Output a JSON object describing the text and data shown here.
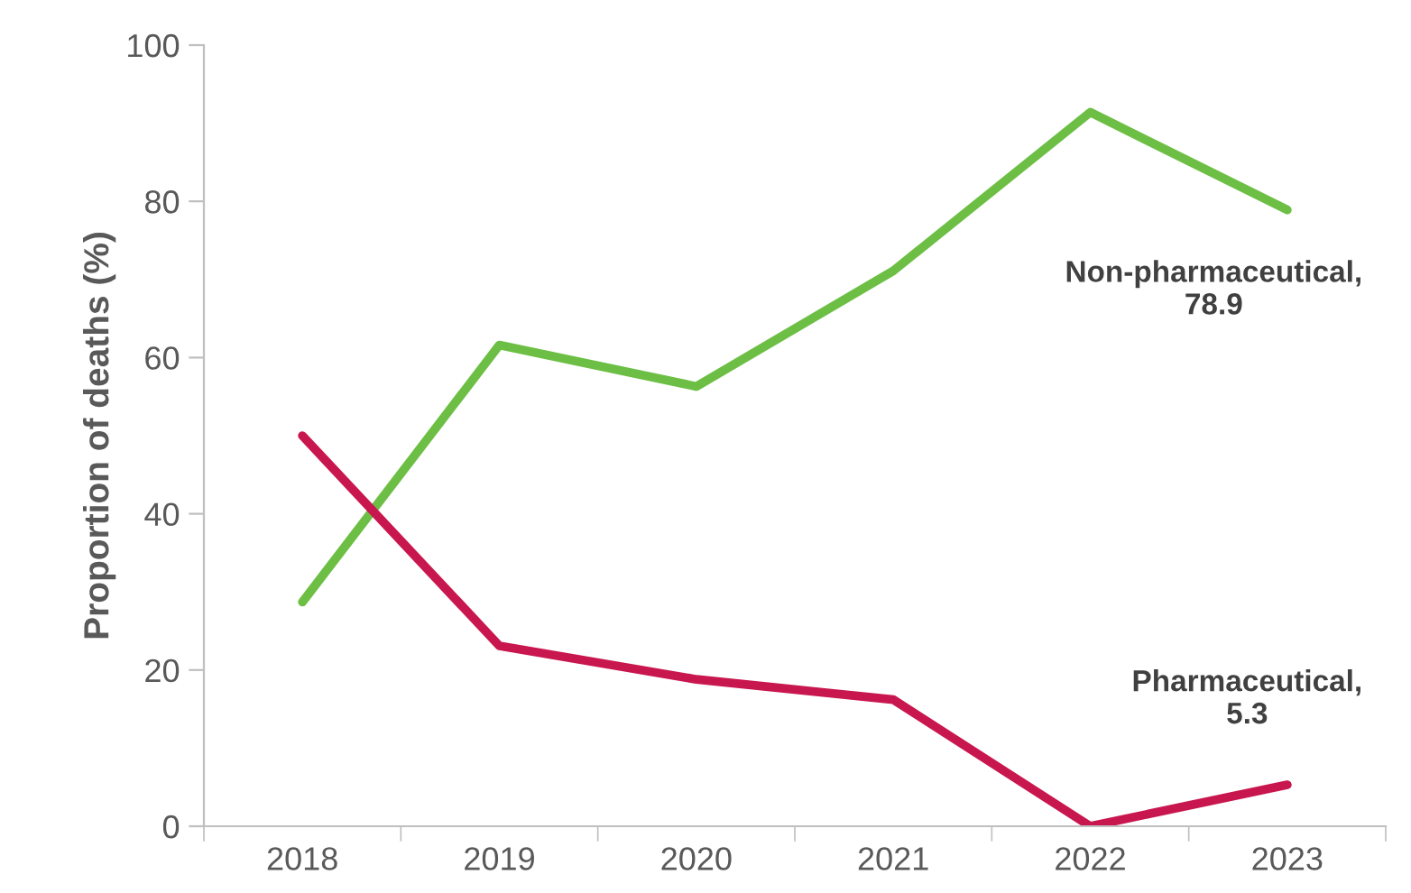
{
  "chart_data": {
    "type": "line",
    "ylabel": "Proportion of deaths (%)",
    "categories": [
      "2018",
      "2019",
      "2020",
      "2021",
      "2022",
      "2023"
    ],
    "series": [
      {
        "color": "#6cbf44",
        "values": [
          28.7,
          61.6,
          56.3,
          71.1,
          91.4,
          78.9
        ]
      },
      {
        "color": "#c8174f",
        "values": [
          50.0,
          23.1,
          18.8,
          16.2,
          0,
          5.3
        ]
      }
    ],
    "ylim": [
      0,
      100
    ],
    "yticks": [
      0,
      20,
      40,
      60,
      80,
      100
    ],
    "grid": false,
    "legend": false,
    "marker": "none",
    "line_style": "solid",
    "annotations": [
      {
        "text": "Non-pharmaceutical,\n78.9",
        "x": "2023",
        "y": 78.9
      },
      {
        "text": "Pharmaceutical,\n5.3",
        "x": "2023",
        "y": 5.3
      }
    ]
  }
}
